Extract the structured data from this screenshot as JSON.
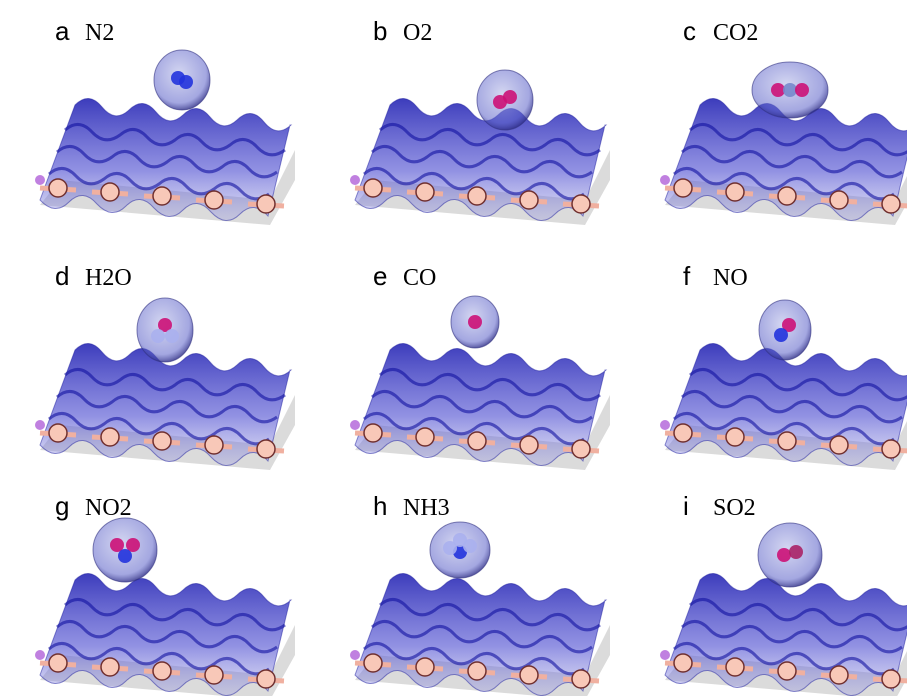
{
  "panels": [
    {
      "letter": "a",
      "label": "N2"
    },
    {
      "letter": "b",
      "label": "O2"
    },
    {
      "letter": "c",
      "label": "CO2"
    },
    {
      "letter": "d",
      "label": "H2O"
    },
    {
      "letter": "e",
      "label": "CO"
    },
    {
      "letter": "f",
      "label": "NO"
    },
    {
      "letter": "g",
      "label": "NO2"
    },
    {
      "letter": "h",
      "label": "NH3"
    },
    {
      "letter": "i",
      "label": "SO2"
    }
  ]
}
